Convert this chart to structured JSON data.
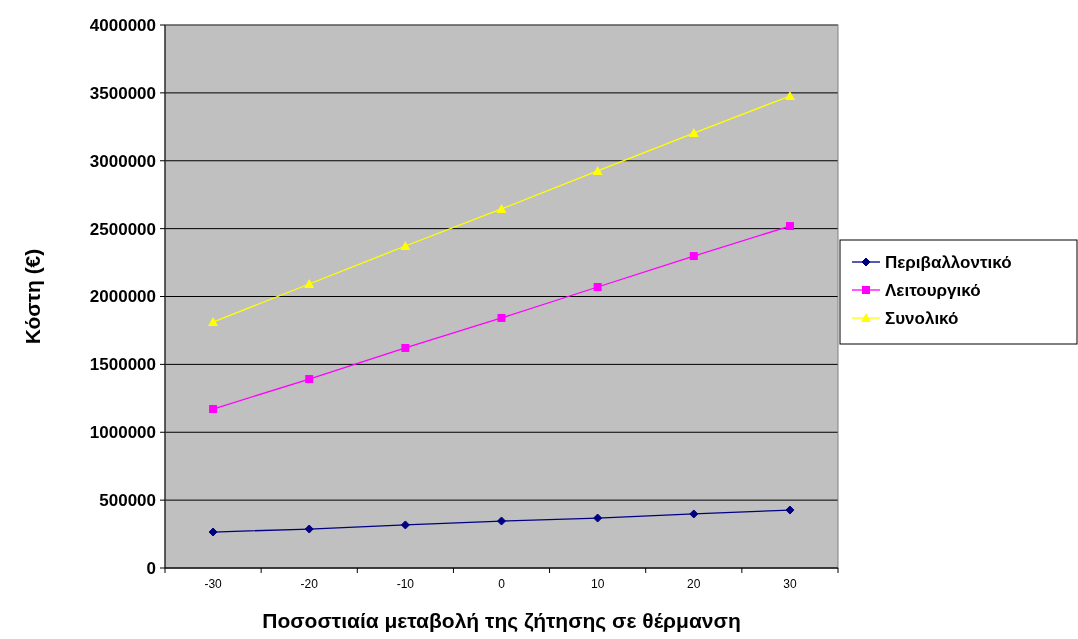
{
  "chart_data": {
    "type": "line",
    "xlabel": "Ποσοστιαία μεταβολή της ζήτησης σε θέρμανση",
    "ylabel": "Κόστη (€)",
    "categories": [
      "-30",
      "-20",
      "-10",
      "0",
      "10",
      "20",
      "30"
    ],
    "series": [
      {
        "name": "Περιβαλλοντικό",
        "color": "#000080",
        "marker": "diamond",
        "values": [
          265000,
          287000,
          317000,
          346000,
          368000,
          398000,
          427000
        ]
      },
      {
        "name": "Λειτουργικό",
        "color": "#ff00ff",
        "marker": "square",
        "values": [
          1171000,
          1392000,
          1621000,
          1842000,
          2070000,
          2298000,
          2519000
        ]
      },
      {
        "name": "Συνολικό",
        "color": "#ffff00",
        "marker": "triangle",
        "values": [
          1812000,
          2092000,
          2372000,
          2645000,
          2925000,
          3204000,
          3477000
        ]
      }
    ],
    "ylim": [
      0,
      4000000
    ],
    "yticks": [
      0,
      500000,
      1000000,
      1500000,
      2000000,
      2500000,
      3000000,
      3500000,
      4000000
    ],
    "grid": "y",
    "legend": "right"
  }
}
